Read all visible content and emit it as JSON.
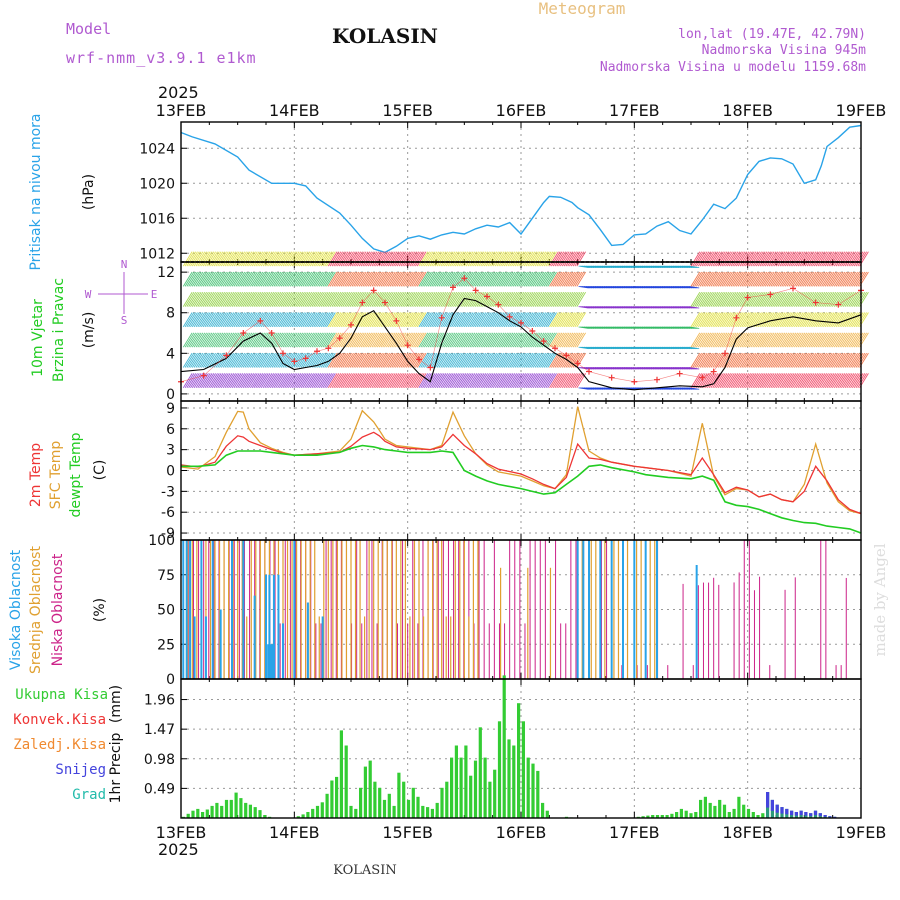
{
  "header": {
    "model_label": "Model",
    "model_value": "wrf-nmm_v3.9.1 e1km",
    "station": "KOLASIN",
    "title": "Meteogram",
    "lonlat": "lon,lat (19.47E, 42.79N)",
    "elevation": "Nadmorska Visina 945m",
    "model_elevation": "Nadmorska Visina u modelu 1159.68m",
    "year_top": "2025",
    "year_bottom": "2025",
    "footer": "KOLASIN",
    "watermark": "made by Angel"
  },
  "colors": {
    "pressure": "#29a3e8",
    "temp2m": "#ee3535",
    "sfc_temp": "#e0a030",
    "dewpoint": "#22cc22",
    "wind_speed": "#000000",
    "gust": "#ee3535",
    "cloud_high": "#29a3e8",
    "cloud_mid": "#e0a030",
    "cloud_low": "#cc2288",
    "precip_total": "#33cc33",
    "precip_conv": "#ee3535",
    "snow": "#4444dd",
    "hail": "#22bbaa",
    "label_purple": "#b05ad0",
    "title_orange": "#e8c080"
  },
  "chart_data": [
    {
      "type": "line",
      "id": "pressure",
      "ylabel": "Pritisak na nivou mora",
      "unit": "(hPa)",
      "ylim": [
        1011,
        1027
      ],
      "yticks": [
        1012,
        1016,
        1020,
        1024
      ],
      "grid": true,
      "x_ticks": [
        "13FEB",
        "14FEB",
        "15FEB",
        "16FEB",
        "17FEB",
        "18FEB",
        "19FEB"
      ],
      "x": [
        0,
        0.1,
        0.3,
        0.5,
        0.6,
        0.8,
        1.0,
        1.1,
        1.2,
        1.4,
        1.5,
        1.6,
        1.7,
        1.8,
        1.9,
        2.0,
        2.1,
        2.2,
        2.3,
        2.4,
        2.5,
        2.6,
        2.7,
        2.8,
        2.9,
        3.0,
        3.1,
        3.2,
        3.25,
        3.35,
        3.45,
        3.5,
        3.6,
        3.7,
        3.8,
        3.9,
        4.0,
        4.1,
        4.2,
        4.3,
        4.4,
        4.5,
        4.6,
        4.7,
        4.8,
        4.9,
        5.0,
        5.1,
        5.2,
        5.3,
        5.4,
        5.5,
        5.6,
        5.65,
        5.7,
        5.8,
        5.9,
        6.0
      ],
      "series": [
        {
          "values": [
            1025.8,
            1025.3,
            1024.5,
            1023.0,
            1021.5,
            1020.0,
            1020.0,
            1019.7,
            1018.3,
            1016.6,
            1015.2,
            1013.7,
            1012.5,
            1012.1,
            1012.8,
            1013.7,
            1014.0,
            1013.6,
            1014.1,
            1014.4,
            1014.2,
            1014.8,
            1015.2,
            1015.0,
            1015.5,
            1014.2,
            1016.0,
            1017.8,
            1018.5,
            1018.4,
            1017.8,
            1017.2,
            1016.4,
            1014.7,
            1012.9,
            1013.0,
            1014.1,
            1014.2,
            1015.1,
            1015.6,
            1014.6,
            1014.2,
            1015.8,
            1017.6,
            1017.1,
            1018.3,
            1021.0,
            1022.5,
            1022.9,
            1022.8,
            1022.2,
            1020.0,
            1020.4,
            1022.0,
            1024.2,
            1025.2,
            1026.4,
            1026.6
          ]
        }
      ]
    },
    {
      "type": "line",
      "id": "wind",
      "ylabel_1": "10m Vjetar",
      "ylabel_2": "Brzina i Pravac",
      "unit": "(m/s)",
      "direction_labels": [
        "N",
        "S",
        "W",
        "E"
      ],
      "ylim": [
        -0.7,
        13
      ],
      "yticks": [
        0,
        4,
        8,
        12
      ],
      "grid": true,
      "x": [
        0,
        0.2,
        0.4,
        0.55,
        0.7,
        0.8,
        0.9,
        1.0,
        1.1,
        1.2,
        1.3,
        1.4,
        1.5,
        1.6,
        1.7,
        1.8,
        1.9,
        2.0,
        2.1,
        2.2,
        2.3,
        2.4,
        2.5,
        2.6,
        2.7,
        2.8,
        2.9,
        3.0,
        3.1,
        3.2,
        3.3,
        3.4,
        3.5,
        3.6,
        3.8,
        4.0,
        4.2,
        4.4,
        4.6,
        4.7,
        4.8,
        4.9,
        5.0,
        5.2,
        5.4,
        5.6,
        5.8,
        6.0
      ],
      "series": [
        {
          "values": [
            2.2,
            2.4,
            3.5,
            5.2,
            6.0,
            5.0,
            3.0,
            2.4,
            2.6,
            2.8,
            3.2,
            4.0,
            5.5,
            7.6,
            8.2,
            6.6,
            5.0,
            3.2,
            2.0,
            1.2,
            5.0,
            7.8,
            9.4,
            9.2,
            8.6,
            8.0,
            7.2,
            6.6,
            5.6,
            4.8,
            4.0,
            3.4,
            2.6,
            1.2,
            0.6,
            0.4,
            0.6,
            0.8,
            0.7,
            1.0,
            2.6,
            5.4,
            6.5,
            7.2,
            7.6,
            7.2,
            7.0,
            7.8
          ]
        },
        {
          "values": [
            1.2,
            1.8,
            3.8,
            6.0,
            7.2,
            6.0,
            4.0,
            3.2,
            3.5,
            4.2,
            4.5,
            5.5,
            6.8,
            9.0,
            10.2,
            9.0,
            7.2,
            4.8,
            3.4,
            2.6,
            7.5,
            10.5,
            11.4,
            10.2,
            9.6,
            8.8,
            7.6,
            7.0,
            6.2,
            5.2,
            4.5,
            3.8,
            3.0,
            2.2,
            1.6,
            1.2,
            1.4,
            2.0,
            1.6,
            2.2,
            4.0,
            7.5,
            9.5,
            9.8,
            10.4,
            9.0,
            8.8,
            10.2
          ]
        }
      ]
    },
    {
      "type": "line",
      "id": "temperature",
      "ylabel_1": "2m Temp",
      "ylabel_2": "SFC Temp",
      "ylabel_3": "dewpt Temp",
      "unit": "(C)",
      "ylim": [
        -10,
        10
      ],
      "yticks": [
        -9,
        -6,
        -3,
        0,
        3,
        6,
        9
      ],
      "grid": true,
      "x": [
        0,
        0.15,
        0.3,
        0.4,
        0.5,
        0.55,
        0.6,
        0.7,
        0.8,
        0.9,
        1.0,
        1.2,
        1.4,
        1.5,
        1.6,
        1.7,
        1.75,
        1.8,
        1.9,
        2.0,
        2.2,
        2.3,
        2.4,
        2.5,
        2.6,
        2.7,
        2.8,
        3.0,
        3.1,
        3.2,
        3.3,
        3.4,
        3.5,
        3.6,
        3.7,
        3.8,
        4.0,
        4.1,
        4.3,
        4.5,
        4.6,
        4.7,
        4.8,
        4.9,
        5.0,
        5.1,
        5.2,
        5.3,
        5.4,
        5.5,
        5.6,
        5.7,
        5.8,
        5.9,
        6.0
      ],
      "series": [
        {
          "name": "2m Temp",
          "values": [
            0.8,
            0.5,
            1.2,
            3.5,
            5.0,
            4.8,
            4.2,
            3.6,
            3.0,
            2.5,
            2.2,
            2.4,
            2.6,
            3.5,
            4.8,
            5.5,
            5.0,
            4.2,
            3.4,
            3.2,
            3.0,
            3.4,
            5.2,
            3.6,
            2.4,
            1.0,
            0.2,
            -0.5,
            -1.2,
            -2.0,
            -2.6,
            -1.0,
            3.8,
            1.8,
            1.6,
            1.2,
            0.6,
            0.4,
            0.0,
            -0.6,
            1.8,
            -0.6,
            -3.2,
            -2.4,
            -2.8,
            -3.8,
            -3.4,
            -4.2,
            -4.5,
            -3.0,
            0.6,
            -1.5,
            -4.2,
            -5.6,
            -6.2
          ]
        },
        {
          "name": "SFC Temp",
          "values": [
            0.5,
            0.2,
            2.0,
            5.5,
            8.5,
            8.4,
            6.0,
            4.0,
            3.2,
            2.6,
            2.2,
            2.4,
            2.8,
            4.5,
            8.6,
            7.0,
            5.8,
            4.5,
            3.6,
            3.4,
            3.0,
            3.6,
            8.4,
            5.0,
            2.4,
            0.8,
            -0.2,
            -0.8,
            -1.5,
            -2.2,
            -2.6,
            -0.6,
            9.2,
            2.8,
            1.8,
            1.2,
            0.6,
            0.4,
            0.0,
            -0.8,
            6.8,
            -0.8,
            -3.5,
            -2.6,
            -2.8,
            -3.8,
            -3.4,
            -4.2,
            -4.5,
            -2.0,
            3.8,
            -1.8,
            -4.5,
            -5.8,
            -6.2
          ]
        },
        {
          "name": "dewpt Temp",
          "values": [
            0.6,
            0.6,
            0.8,
            2.2,
            2.8,
            2.8,
            2.8,
            2.8,
            2.6,
            2.4,
            2.2,
            2.2,
            2.6,
            3.2,
            3.6,
            3.4,
            3.2,
            3.0,
            2.8,
            2.6,
            2.6,
            2.8,
            2.6,
            0.0,
            -0.8,
            -1.5,
            -2.0,
            -2.6,
            -3.0,
            -3.4,
            -3.2,
            -2.0,
            -0.8,
            0.6,
            0.8,
            0.4,
            -0.2,
            -0.6,
            -1.0,
            -1.2,
            -0.8,
            -1.4,
            -4.5,
            -5.0,
            -5.2,
            -5.6,
            -6.2,
            -6.8,
            -7.2,
            -7.5,
            -7.6,
            -8.0,
            -8.2,
            -8.4,
            -9.0
          ]
        }
      ]
    },
    {
      "type": "bar",
      "id": "clouds",
      "ylabel_1": "Visoka Oblacnost",
      "ylabel_2": "Srednja Oblacnost",
      "ylabel_3": "Niska Oblacnost",
      "unit": "(%)",
      "ylim": [
        0,
        100
      ],
      "yticks": [
        0,
        25,
        50,
        75,
        100
      ],
      "grid": true,
      "series": [
        {
          "name": "Visoka Oblacnost",
          "segments": [
            [
              0.02,
              1.1,
              100
            ],
            [
              0.1,
              0.3,
              45
            ],
            [
              0.75,
              0.85,
              75
            ],
            [
              0.8,
              0.95,
              30
            ],
            [
              1.15,
              1.25,
              65
            ],
            [
              3.5,
              4.4,
              100
            ],
            [
              4.55,
              4.6,
              80
            ]
          ]
        },
        {
          "name": "Srednja Oblacnost",
          "segments": [
            [
              0.02,
              3.5,
              100
            ],
            [
              3.5,
              4.3,
              100
            ]
          ]
        },
        {
          "name": "Niska Oblacnost",
          "segments": [
            [
              0.02,
              3.5,
              100
            ],
            [
              3.5,
              6.0,
              100
            ]
          ]
        }
      ]
    },
    {
      "type": "bar",
      "id": "precip",
      "ylabel": "1hr Precip",
      "unit": "(mm)",
      "ylim": [
        0,
        2.3
      ],
      "yticks": [
        0.49,
        0.98,
        1.47,
        1.96
      ],
      "grid": true,
      "legend": [
        "Ukupna Kisa",
        "Konvek.Kisa",
        "Zaledj.Kisa",
        "Snijeg",
        "Grad"
      ],
      "series": [
        {
          "name": "Ukupna Kisa",
          "values": [
            0.02,
            0.07,
            0.12,
            0.15,
            0.1,
            0.14,
            0.2,
            0.25,
            0.2,
            0.3,
            0.3,
            0.42,
            0.33,
            0.25,
            0.22,
            0.18,
            0.13,
            0.05,
            0.02,
            0,
            0,
            0,
            0,
            0,
            0.03,
            0.06,
            0.1,
            0.15,
            0.2,
            0.26,
            0.4,
            0.62,
            0.68,
            1.45,
            1.2,
            0.2,
            0.15,
            0.5,
            0.85,
            0.95,
            0.6,
            0.5,
            0.3,
            0.4,
            0.2,
            0.75,
            0.6,
            0.3,
            0.5,
            0.35,
            0.2,
            0.18,
            0.15,
            0.25,
            0.5,
            0.6,
            1.0,
            1.2,
            1.0,
            1.2,
            0.7,
            0.95,
            1.5,
            1.0,
            0.6,
            0.8,
            1.6,
            2.36,
            1.3,
            1.2,
            1.9,
            1.6,
            1.0,
            0.9,
            0.78,
            0.25,
            0.12,
            0,
            0,
            0,
            0.02,
            0.01,
            0,
            0,
            0,
            0,
            0,
            0,
            0,
            0,
            0,
            0,
            0,
            0,
            0,
            0.02,
            0.03,
            0.04,
            0.05,
            0.05,
            0.05,
            0.05,
            0.07,
            0.1,
            0.15,
            0.12,
            0.08,
            0.1,
            0.3,
            0.35,
            0.25,
            0.2,
            0.3,
            0.22,
            0.1,
            0.15,
            0.35,
            0.22,
            0.15,
            0.1,
            0.05,
            0.08,
            0.43,
            0.3,
            0.22,
            0.18,
            0.15,
            0.12,
            0.1,
            0.12,
            0.1,
            0.08,
            0.12,
            0.08,
            0.05,
            0.03,
            0.02,
            0,
            0,
            0,
            0,
            0
          ]
        },
        {
          "name": "Snijeg",
          "values": [
            0,
            0,
            0,
            0,
            0,
            0,
            0,
            0,
            0,
            0,
            0,
            0,
            0,
            0,
            0,
            0,
            0,
            0,
            0,
            0,
            0,
            0,
            0,
            0,
            0,
            0,
            0,
            0,
            0,
            0,
            0,
            0,
            0,
            0,
            0,
            0,
            0,
            0,
            0,
            0,
            0,
            0,
            0,
            0,
            0,
            0,
            0,
            0,
            0,
            0,
            0,
            0,
            0,
            0,
            0,
            0,
            0,
            0,
            0,
            0,
            0,
            0,
            0,
            0,
            0,
            0,
            0,
            0,
            0,
            0,
            0,
            0,
            0,
            0,
            0,
            0,
            0,
            0,
            0,
            0,
            0,
            0,
            0,
            0,
            0,
            0,
            0,
            0,
            0,
            0,
            0,
            0,
            0,
            0,
            0,
            0,
            0,
            0,
            0,
            0,
            0,
            0,
            0,
            0,
            0,
            0,
            0,
            0,
            0,
            0,
            0,
            0,
            0,
            0,
            0,
            0,
            0,
            0,
            0,
            0,
            0,
            0,
            0.48,
            0.35,
            0.18,
            0.1,
            0.1,
            0.12,
            0.1,
            0.12,
            0.1,
            0.08,
            0.1,
            0.06,
            0.03,
            0.02,
            0.01,
            0,
            0,
            0,
            0,
            0
          ]
        }
      ]
    }
  ]
}
